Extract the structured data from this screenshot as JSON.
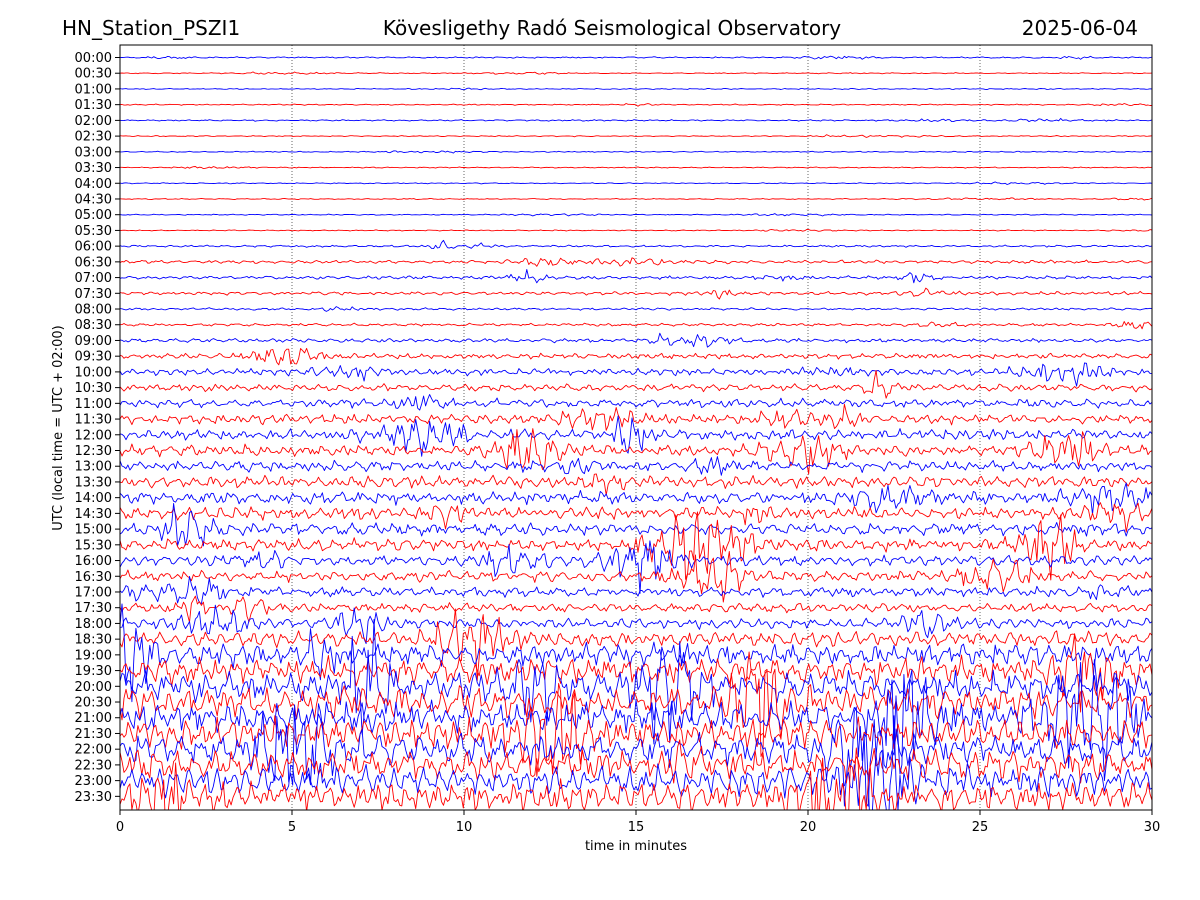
{
  "header": {
    "station": "HN_Station_PSZI1",
    "observatory": "Kövesligethy Radó Seismological Observatory",
    "date": "2025-06-04"
  },
  "chart_data": {
    "type": "line",
    "title": "Kövesligethy Radó Seismological Observatory",
    "xlabel": "time in minutes",
    "ylabel": "UTC (local time = UTC + 02:00)",
    "xlim": [
      0,
      30
    ],
    "xticks": [
      "0",
      "5",
      "10",
      "15",
      "20",
      "25",
      "30"
    ],
    "x_gridlines": [
      5,
      10,
      15,
      20,
      25
    ],
    "grid": "vertical dotted",
    "rows": [
      "00:00",
      "00:30",
      "01:00",
      "01:30",
      "02:00",
      "02:30",
      "03:00",
      "03:30",
      "04:00",
      "04:30",
      "05:00",
      "05:30",
      "06:00",
      "06:30",
      "07:00",
      "07:30",
      "08:00",
      "08:30",
      "09:00",
      "09:30",
      "10:00",
      "10:30",
      "11:00",
      "11:30",
      "12:00",
      "12:30",
      "13:00",
      "13:30",
      "14:00",
      "14:30",
      "15:00",
      "15:30",
      "16:00",
      "16:30",
      "17:00",
      "17:30",
      "18:00",
      "18:30",
      "19:00",
      "19:30",
      "20:00",
      "20:30",
      "21:00",
      "21:30",
      "22:00",
      "22:30",
      "23:00",
      "23:30"
    ],
    "trace_colors": [
      "#0000ff",
      "#ff0000"
    ],
    "relative_amplitude": [
      0.1,
      0.05,
      0.05,
      0.08,
      0.1,
      0.04,
      0.05,
      0.06,
      0.06,
      0.04,
      0.06,
      0.05,
      0.18,
      0.3,
      0.28,
      0.3,
      0.2,
      0.25,
      0.35,
      0.45,
      0.6,
      0.65,
      0.75,
      0.85,
      0.95,
      1.0,
      0.95,
      1.05,
      1.1,
      1.1,
      1.15,
      1.1,
      1.0,
      0.95,
      0.85,
      0.8,
      0.9,
      1.4,
      2.0,
      2.4,
      2.6,
      2.7,
      2.7,
      2.7,
      2.7,
      2.7,
      2.6,
      2.5
    ]
  }
}
